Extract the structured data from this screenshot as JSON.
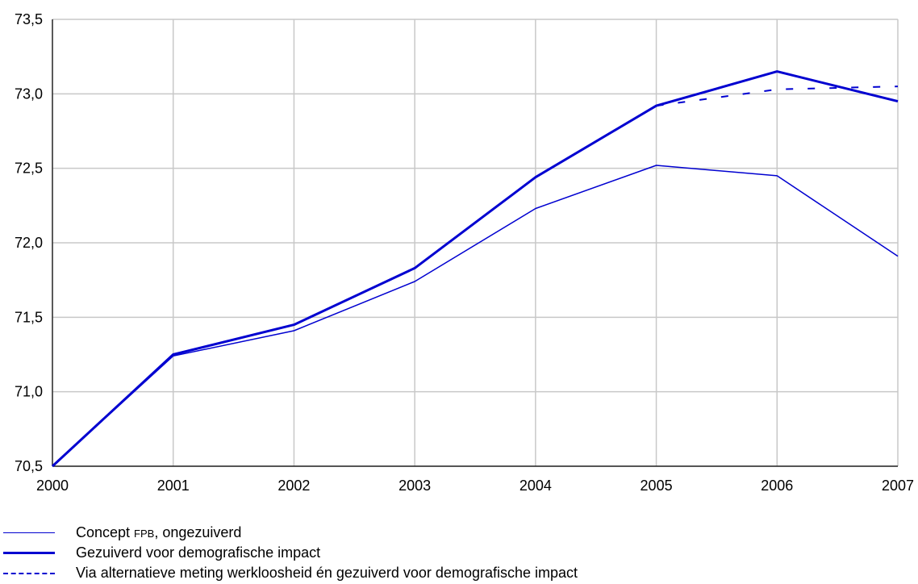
{
  "chart_data": {
    "type": "line",
    "x": [
      2000,
      2001,
      2002,
      2003,
      2004,
      2005,
      2006,
      2007
    ],
    "xlim": [
      2000,
      2007
    ],
    "ylim": [
      70.5,
      73.5
    ],
    "x_tick_labels": [
      "2000",
      "2001",
      "2002",
      "2003",
      "2004",
      "2005",
      "2006",
      "2007"
    ],
    "y_tick_values": [
      70.5,
      71.0,
      71.5,
      72.0,
      72.5,
      73.0,
      73.5
    ],
    "y_tick_labels": [
      "70,5",
      "71,0",
      "71,5",
      "72,0",
      "72,5",
      "73,0",
      "73,5"
    ],
    "grid": true,
    "legend_position": "bottom-left",
    "series": [
      {
        "name_parts": [
          "Concept ",
          "FPB",
          ", ongezuiverd"
        ],
        "style": "thin",
        "color": "#0000d0",
        "x": [
          2000,
          2001,
          2002,
          2003,
          2004,
          2005,
          2006,
          2007
        ],
        "values": [
          70.5,
          71.24,
          71.41,
          71.74,
          72.23,
          72.52,
          72.45,
          71.91
        ]
      },
      {
        "name": "Gezuiverd voor demografische impact",
        "style": "thick",
        "color": "#0000d0",
        "x": [
          2000,
          2001,
          2002,
          2003,
          2004,
          2005,
          2006,
          2007
        ],
        "values": [
          70.5,
          71.25,
          71.45,
          71.83,
          72.44,
          72.92,
          73.15,
          72.95
        ]
      },
      {
        "name": "Via alternatieve meting werkloosheid én gezuiverd voor demografische impact",
        "style": "dashed",
        "color": "#0000d0",
        "x": [
          2005,
          2006,
          2007
        ],
        "values": [
          72.92,
          73.03,
          73.05
        ]
      }
    ]
  }
}
